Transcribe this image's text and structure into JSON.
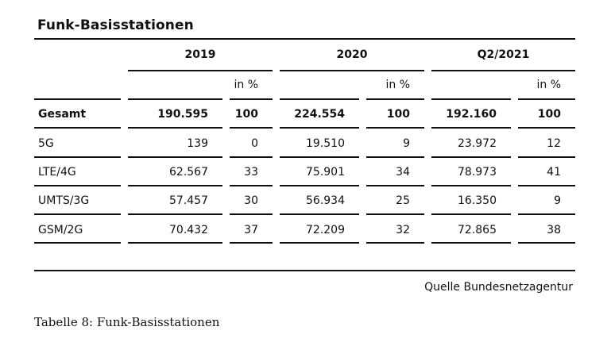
{
  "title": "Funk-Basisstationen",
  "years": [
    "2019",
    "2020",
    "Q2/2021"
  ],
  "pct_label": "in %",
  "rows": [
    {
      "label": "Gesamt",
      "values": [
        "190.595",
        "100",
        "224.554",
        "100",
        "192.160",
        "100"
      ],
      "bold": true
    },
    {
      "label": "5G",
      "values": [
        "139",
        "0",
        "19.510",
        "9",
        "23.972",
        "12"
      ]
    },
    {
      "label": "LTE/4G",
      "values": [
        "62.567",
        "33",
        "75.901",
        "34",
        "78.973",
        "41"
      ]
    },
    {
      "label": "UMTS/3G",
      "values": [
        "57.457",
        "30",
        "56.934",
        "25",
        "16.350",
        "9"
      ]
    },
    {
      "label": "GSM/2G",
      "values": [
        "70.432",
        "37",
        "72.209",
        "32",
        "72.865",
        "38"
      ]
    }
  ],
  "source": "Quelle Bundesnetzagentur",
  "caption": "Tabelle 8: Funk-Basisstationen"
}
